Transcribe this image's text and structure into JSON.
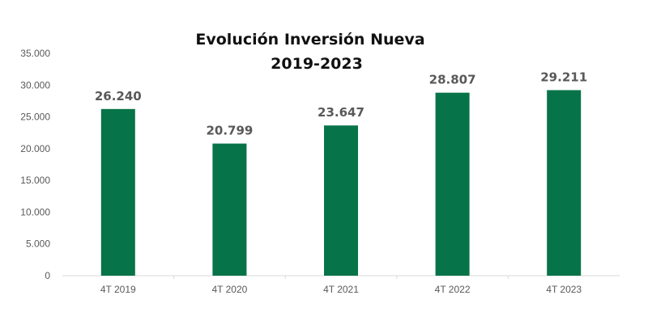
{
  "chart_data": {
    "type": "bar",
    "title": [
      "Evolución Inversión Nueva",
      "2019-2023"
    ],
    "categories": [
      "4T 2019",
      "4T 2020",
      "4T 2021",
      "4T 2022",
      "4T 2023"
    ],
    "values": [
      26240,
      20799,
      23647,
      28807,
      29211
    ],
    "data_labels": [
      "26.240",
      "20.799",
      "23.647",
      "28.807",
      "29.211"
    ],
    "y_ticks": [
      "0",
      "5.000",
      "10.000",
      "15.000",
      "20.000",
      "25.000",
      "30.000",
      "35.000"
    ],
    "ylim": [
      0,
      35000
    ],
    "xlabel": "",
    "ylabel": "",
    "grid": false,
    "legend": "none",
    "bar_color": "#077349"
  }
}
